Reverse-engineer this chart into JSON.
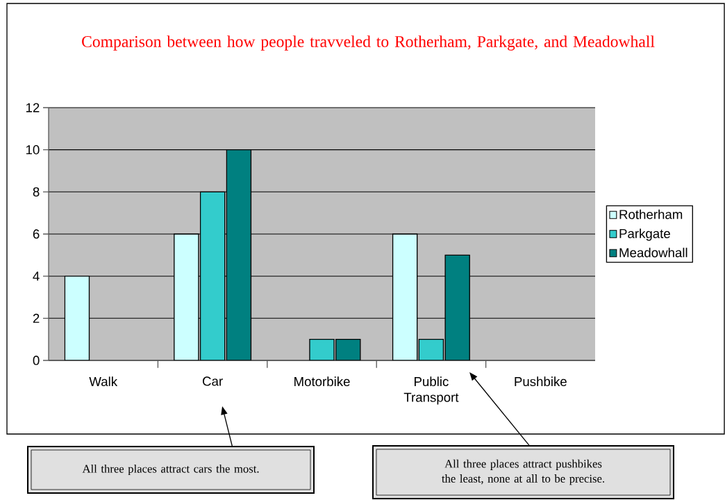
{
  "chart_data": {
    "type": "bar",
    "title": "Comparison between how people travveled to Rotherham, Parkgate, and Meadowhall",
    "categories": [
      "Walk",
      "Car",
      "Motorbike",
      "Public Transport",
      "Pushbike"
    ],
    "series": [
      {
        "name": "Rotherham",
        "color": "#ccffff",
        "values": [
          4,
          6,
          0,
          6,
          0
        ]
      },
      {
        "name": "Parkgate",
        "color": "#33cccc",
        "values": [
          0,
          8,
          1,
          1,
          0
        ]
      },
      {
        "name": "Meadowhall",
        "color": "#008080",
        "values": [
          0,
          10,
          1,
          5,
          0
        ]
      }
    ],
    "ylim": [
      0,
      12
    ],
    "yticks": [
      0,
      2,
      4,
      6,
      8,
      10,
      12
    ],
    "grid": "y",
    "legend": "right",
    "annotations": [
      "All three places attract cars the most.",
      "All three places attract pushbikes the least, none at all to be precise."
    ]
  }
}
